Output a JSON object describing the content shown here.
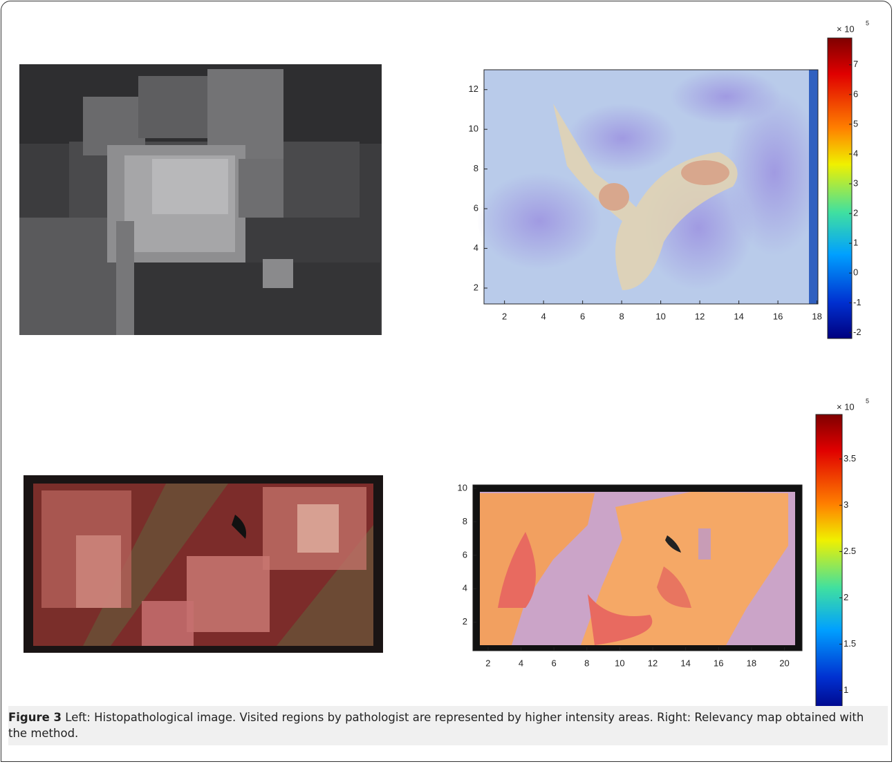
{
  "figure": {
    "panels": [
      {
        "xticks": [
          2,
          4,
          6,
          8,
          10,
          12,
          14,
          16,
          18
        ],
        "yticks": [
          2,
          4,
          6,
          8,
          10,
          12
        ],
        "xlim": [
          0.95,
          18.05
        ],
        "ylim": [
          1.2,
          13
        ],
        "colorbar": {
          "ticks": [
            7,
            6,
            5,
            4,
            3,
            2,
            1,
            0,
            -1,
            -2
          ],
          "clim": [
            -2.2,
            7.9
          ],
          "multiplier": "× 10",
          "exponent": 5
        }
      },
      {
        "xticks": [
          2,
          4,
          6,
          8,
          10,
          12,
          14,
          16,
          18,
          20
        ],
        "yticks": [
          2,
          4,
          6,
          8,
          10
        ],
        "xlim": [
          1.08,
          21.07
        ],
        "ylim": [
          0.3,
          10.2
        ],
        "colorbar": {
          "ticks": [
            3.5,
            3,
            2.5,
            2,
            1.5,
            1
          ],
          "clim": [
            0.75,
            3.98
          ],
          "multiplier": "× 10",
          "exponent": 5
        }
      }
    ],
    "caption": {
      "label": "Figure 3",
      "text": "Left: Histopathological image. Visited regions by pathologist are represented by higher intensity areas. Right: Relevancy map obtained with the method."
    }
  }
}
